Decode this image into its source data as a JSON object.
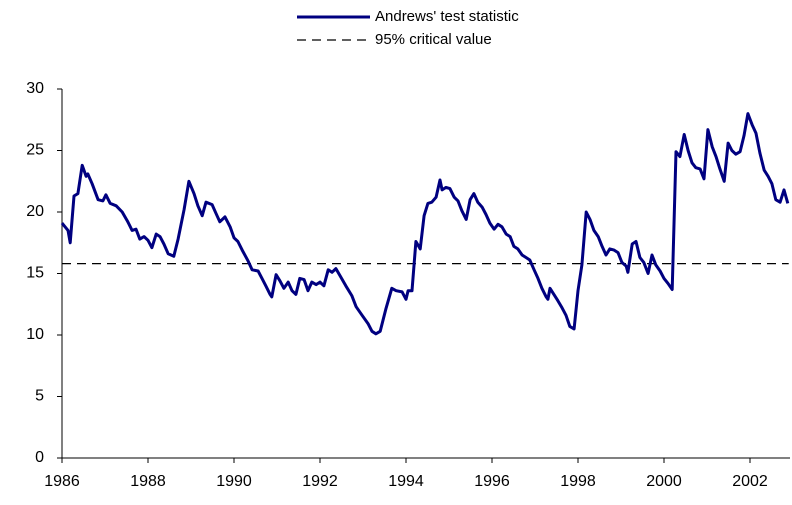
{
  "chart_data": {
    "type": "line",
    "x": [
      1986.0,
      1986.14,
      1986.19,
      1986.28,
      1986.37,
      1986.47,
      1986.56,
      1986.6,
      1986.7,
      1986.84,
      1986.95,
      1987.02,
      1987.12,
      1987.26,
      1987.4,
      1987.53,
      1987.63,
      1987.72,
      1987.81,
      1987.91,
      1988.0,
      1988.09,
      1988.19,
      1988.28,
      1988.37,
      1988.47,
      1988.6,
      1988.7,
      1988.84,
      1988.95,
      1989.07,
      1989.16,
      1989.26,
      1989.35,
      1989.49,
      1989.58,
      1989.67,
      1989.79,
      1989.91,
      1990.0,
      1990.09,
      1990.19,
      1990.33,
      1990.42,
      1990.56,
      1990.65,
      1990.74,
      1990.84,
      1990.88,
      1990.98,
      1991.07,
      1991.16,
      1991.26,
      1991.35,
      1991.44,
      1991.53,
      1991.63,
      1991.72,
      1991.81,
      1991.91,
      1992.0,
      1992.09,
      1992.19,
      1992.28,
      1992.37,
      1992.47,
      1992.6,
      1992.74,
      1992.84,
      1992.98,
      1993.12,
      1993.21,
      1993.3,
      1993.4,
      1993.53,
      1993.67,
      1993.77,
      1993.91,
      1994.0,
      1994.05,
      1994.14,
      1994.23,
      1994.33,
      1994.42,
      1994.51,
      1994.6,
      1994.7,
      1994.79,
      1994.84,
      1994.93,
      1995.02,
      1995.12,
      1995.21,
      1995.3,
      1995.4,
      1995.49,
      1995.58,
      1995.67,
      1995.77,
      1995.86,
      1995.95,
      1996.05,
      1996.14,
      1996.23,
      1996.33,
      1996.42,
      1996.51,
      1996.6,
      1996.7,
      1996.79,
      1996.88,
      1996.98,
      1997.07,
      1997.16,
      1997.26,
      1997.3,
      1997.35,
      1997.44,
      1997.53,
      1997.63,
      1997.72,
      1997.81,
      1997.91,
      1998.0,
      1998.09,
      1998.19,
      1998.28,
      1998.37,
      1998.47,
      1998.56,
      1998.65,
      1998.74,
      1998.84,
      1998.93,
      1999.02,
      1999.12,
      1999.16,
      1999.26,
      1999.35,
      1999.44,
      1999.53,
      1999.63,
      1999.72,
      1999.81,
      1999.91,
      2000.0,
      2000.09,
      2000.19,
      2000.28,
      2000.37,
      2000.47,
      2000.56,
      2000.65,
      2000.74,
      2000.84,
      2000.93,
      2001.02,
      2001.12,
      2001.21,
      2001.3,
      2001.4,
      2001.49,
      2001.58,
      2001.67,
      2001.77,
      2001.86,
      2001.95,
      2002.05,
      2002.14,
      2002.23,
      2002.33,
      2002.42,
      2002.51,
      2002.6,
      2002.7,
      2002.79,
      2002.88
    ],
    "series": [
      {
        "name": "Andrews' test statistic",
        "color": "#000080",
        "values": [
          19.1,
          18.5,
          17.5,
          21.3,
          21.5,
          23.8,
          22.9,
          23.1,
          22.3,
          21.0,
          20.9,
          21.4,
          20.7,
          20.5,
          20.0,
          19.2,
          18.5,
          18.6,
          17.8,
          18.0,
          17.7,
          17.1,
          18.2,
          18.0,
          17.4,
          16.6,
          16.4,
          17.8,
          20.2,
          22.5,
          21.5,
          20.5,
          19.7,
          20.8,
          20.6,
          19.9,
          19.2,
          19.6,
          18.8,
          17.9,
          17.6,
          16.9,
          16.0,
          15.3,
          15.2,
          14.6,
          14.0,
          13.3,
          13.1,
          14.9,
          14.4,
          13.8,
          14.3,
          13.6,
          13.3,
          14.6,
          14.5,
          13.6,
          14.3,
          14.1,
          14.3,
          14.0,
          15.3,
          15.1,
          15.4,
          14.8,
          14.0,
          13.2,
          12.3,
          11.6,
          10.9,
          10.3,
          10.1,
          10.3,
          12.1,
          13.8,
          13.6,
          13.5,
          12.9,
          13.6,
          13.6,
          17.6,
          17.0,
          19.7,
          20.7,
          20.8,
          21.2,
          22.6,
          21.8,
          22.0,
          21.9,
          21.2,
          20.9,
          20.1,
          19.4,
          21.0,
          21.5,
          20.8,
          20.4,
          19.8,
          19.1,
          18.6,
          19.0,
          18.8,
          18.2,
          18.0,
          17.2,
          17.0,
          16.5,
          16.3,
          16.1,
          15.3,
          14.6,
          13.8,
          13.1,
          12.9,
          13.8,
          13.3,
          12.8,
          12.2,
          11.6,
          10.7,
          10.5,
          13.6,
          15.7,
          20.0,
          19.4,
          18.5,
          18.0,
          17.2,
          16.5,
          17.0,
          16.9,
          16.7,
          15.9,
          15.6,
          15.1,
          17.4,
          17.6,
          16.3,
          15.9,
          15.0,
          16.5,
          15.7,
          15.2,
          14.6,
          14.2,
          13.7,
          24.9,
          24.5,
          26.3,
          25.0,
          24.0,
          23.6,
          23.5,
          22.7,
          26.7,
          25.3,
          24.5,
          23.5,
          22.5,
          25.6,
          25.0,
          24.7,
          24.9,
          26.2,
          28.0,
          27.1,
          26.4,
          24.8,
          23.4,
          22.9,
          22.3,
          21.0,
          20.8,
          21.8,
          20.7
        ]
      }
    ],
    "reference_line": {
      "name": "95% critical value",
      "value": 15.8,
      "color": "#000000"
    },
    "xlim": [
      1986,
      2002.9
    ],
    "xticks": [
      1986,
      1988,
      1990,
      1992,
      1994,
      1996,
      1998,
      2000,
      2002
    ],
    "ylim": [
      0,
      30
    ],
    "yticks": [
      0,
      5,
      10,
      15,
      20,
      25,
      30
    ]
  }
}
